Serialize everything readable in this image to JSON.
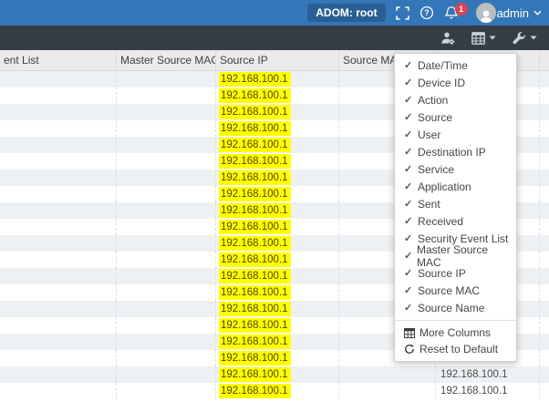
{
  "topbar": {
    "adom_label": "ADOM: root",
    "notification_count": "1",
    "user_name": "admin",
    "icons": [
      "fullscreen-icon",
      "help-icon",
      "bell-icon",
      "avatar",
      "chevron-down-icon"
    ],
    "colors": {
      "bar": "#3377b8",
      "adom_badge": "#2a5f95",
      "notification_badge": "#da4453"
    }
  },
  "toolbar": {
    "icons": [
      "user-settings-icon",
      "column-settings-icon",
      "tools-icon"
    ],
    "color": "#353d47"
  },
  "table": {
    "headers": [
      {
        "label": "ent List"
      },
      {
        "label": "Master Source MAC"
      },
      {
        "label": "Source IP"
      },
      {
        "label": "Source MAC"
      },
      {
        "label": ""
      },
      {
        "label": ""
      }
    ],
    "highlight_color": "#ffff00",
    "rows": [
      {
        "source_ip": "192.168.100.1",
        "source_name": "192.168.100.1"
      },
      {
        "source_ip": "192.168.100.1",
        "source_name": "192.168.100.1"
      },
      {
        "source_ip": "192.168.100.1",
        "source_name": "192.168.100.1"
      },
      {
        "source_ip": "192.168.100.1",
        "source_name": "192.168.100.1"
      },
      {
        "source_ip": "192.168.100.1",
        "source_name": "192.168.100.1"
      },
      {
        "source_ip": "192.168.100.1",
        "source_name": "192.168.100.1"
      },
      {
        "source_ip": "192.168.100.1",
        "source_name": "192.168.100.1"
      },
      {
        "source_ip": "192.168.100.1",
        "source_name": "192.168.100.1"
      },
      {
        "source_ip": "192.168.100.1",
        "source_name": "192.168.100.1"
      },
      {
        "source_ip": "192.168.100.1",
        "source_name": "192.168.100.1"
      },
      {
        "source_ip": "192.168.100.1",
        "source_name": "192.168.100.1"
      },
      {
        "source_ip": "192.168.100.1",
        "source_name": "192.168.100.1"
      },
      {
        "source_ip": "192.168.100.1",
        "source_name": "192.168.100.1"
      },
      {
        "source_ip": "192.168.100.1",
        "source_name": "192.168.100.1"
      },
      {
        "source_ip": "192.168.100.1",
        "source_name": "192.168.100.1"
      },
      {
        "source_ip": "192.168.100.1",
        "source_name": "192.168.100.1"
      },
      {
        "source_ip": "192.168.100.1",
        "source_name": "192.168.100.1"
      },
      {
        "source_ip": "192.168.100.1",
        "source_name": "192.168.100.1"
      },
      {
        "source_ip": "192.168.100.1",
        "source_name": "192.168.100.1"
      },
      {
        "source_ip": "192.168.100.1",
        "source_name": "192.168.100.1"
      }
    ]
  },
  "column_menu": {
    "check_glyph": "✓",
    "items": [
      "Date/Time",
      "Device ID",
      "Action",
      "Source",
      "User",
      "Destination IP",
      "Service",
      "Application",
      "Sent",
      "Received",
      "Security Event List",
      "Master Source MAC",
      "Source IP",
      "Source MAC",
      "Source Name"
    ],
    "actions": [
      {
        "label": "More Columns",
        "icon": "table-grid-icon"
      },
      {
        "label": "Reset to Default",
        "icon": "reset-icon"
      }
    ]
  }
}
